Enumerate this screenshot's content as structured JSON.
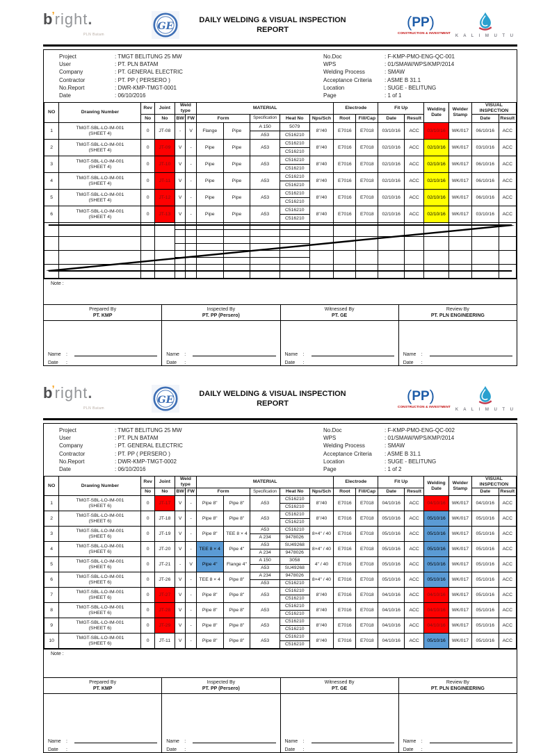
{
  "branding": {
    "title_line1": "DAILY WELDING & VISUAL INSPECTION",
    "title_line2": "REPORT",
    "bright_b": "b",
    "bright_apos": "’",
    "bright_rest": "right",
    "bright_dot": ".",
    "bright_sub": "PLN Batam",
    "ge_letters": "GE",
    "pp_letters": "PP",
    "pp_paren_open": "(",
    "pp_paren_close": ")",
    "pp_sub": "CONSTRUCTION & INVESTMENT",
    "kalimutu_text": "K A L I M U T U"
  },
  "labels": {
    "note": "Note :",
    "name": "Name",
    "date": "Date",
    "colon": ":"
  },
  "columns": {
    "no": "NO",
    "drawing": "Drawing Number",
    "rev": "Rev",
    "joint": "Joint",
    "no_sub": "No",
    "weld_type": "Weld type",
    "bw": "BW",
    "fw": "FW",
    "material": "MATERIAL",
    "form": "Form",
    "spec": "Specification",
    "heat": "Heat No",
    "nps": "Nps/Sch",
    "electrode": "Electrode",
    "root": "Root",
    "fillcap": "Fill/Cap",
    "fitup": "Fit Up",
    "date": "Date",
    "result": "Result",
    "welding_date": "Welding Date",
    "welder_stamp": "Welder Stamp",
    "visual": "VISUAL INSPECTION"
  },
  "signature": {
    "parties": [
      {
        "role": "Prepared By",
        "org": "PT. KMP"
      },
      {
        "role": "Inspected By",
        "org": "PT. PP (Persero)"
      },
      {
        "role": "Witnessed By",
        "org": "PT. GE"
      },
      {
        "role": "Review By",
        "org": "PT. PLN ENGINEERING"
      }
    ]
  },
  "pages": [
    {
      "info_left": [
        {
          "key": "project",
          "label": "Project",
          "value": "TMGT BELITUNG 25 MW"
        },
        {
          "key": "user",
          "label": "User",
          "value": "PT. PLN BATAM"
        },
        {
          "key": "company",
          "label": "Company",
          "value": "PT. GENERAL ELECTRIC"
        },
        {
          "key": "contractor",
          "label": "Contractor",
          "value": "PT. PP ( PERSERO )"
        },
        {
          "key": "no-report",
          "label": "No.Report",
          "value": "DWR-KMP-TMGT-0001"
        },
        {
          "key": "date",
          "label": "Date",
          "value": "06/10/2016"
        }
      ],
      "info_right": [
        {
          "key": "no-doc",
          "label": "No.Doc",
          "value": "F-KMP-PMO-ENG-QC-001"
        },
        {
          "key": "wps",
          "label": "WPS",
          "value": "01/SMAW/WPS/KMP/2014"
        },
        {
          "key": "welding-process",
          "label": "Welding Process",
          "value": "SMAW"
        },
        {
          "key": "acceptance-criteria",
          "label": "Acceptance Criteria",
          "value": "ASME B 31.1"
        },
        {
          "key": "location",
          "label": "Location",
          "value": "SUGE - BELITUNG"
        },
        {
          "key": "page",
          "label": "Page",
          "value": "1 of 1"
        }
      ],
      "rows": [
        {
          "no": "1",
          "drawing": "TMGT-SBL-LO-IM-001",
          "sheet": "(SHEET 4)",
          "rev": "0",
          "joint": "JT-08",
          "jbg": "",
          "bw": "-",
          "fw": "V",
          "f1": "Flange",
          "f1bg": "",
          "f2": "Pipe",
          "spec": [
            "A 150",
            "A53"
          ],
          "heat": [
            "5079",
            "C516210"
          ],
          "nps": "8\"/40",
          "root": "E7016",
          "fill": "E7018",
          "fit": "03/10/16",
          "fitr": "ACC",
          "wd": "03/10/16",
          "wbg": "red",
          "stamp": "WK/017",
          "vid": "06/10/16",
          "vir": "ACC"
        },
        {
          "no": "2",
          "drawing": "TMGT-SBL-LO-IM-001",
          "sheet": "(SHEET 4)",
          "rev": "0",
          "joint": "JT-09",
          "jbg": "red",
          "bw": "V",
          "fw": "-",
          "f1": "Pipe",
          "f1bg": "",
          "f2": "Pipe",
          "spec": [
            "A53"
          ],
          "heat": [
            "C516210",
            "C516210"
          ],
          "nps": "8\"/40",
          "root": "E7016",
          "fill": "E7018",
          "fit": "02/10/16",
          "fitr": "ACC",
          "wd": "02/10/16",
          "wbg": "yellow",
          "stamp": "WK/017",
          "vid": "03/10/16",
          "vir": "ACC"
        },
        {
          "no": "3",
          "drawing": "TMGT-SBL-LO-IM-001",
          "sheet": "(SHEET 4)",
          "rev": "0",
          "joint": "JT-10",
          "jbg": "red",
          "bw": "V",
          "fw": "-",
          "f1": "Pipe",
          "f1bg": "",
          "f2": "Pipe",
          "spec": [
            "A53"
          ],
          "heat": [
            "C516210",
            "C516210"
          ],
          "nps": "8\"/40",
          "root": "E7016",
          "fill": "E7018",
          "fit": "02/10/16",
          "fitr": "ACC",
          "wd": "02/10/16",
          "wbg": "yellow",
          "stamp": "WK/017",
          "vid": "06/10/16",
          "vir": "ACC"
        },
        {
          "no": "4",
          "drawing": "TMGT-SBL-LO-IM-001",
          "sheet": "(SHEET 4)",
          "rev": "0",
          "joint": "JT-11",
          "jbg": "red",
          "bw": "V",
          "fw": "-",
          "f1": "Pipe",
          "f1bg": "",
          "f2": "Pipe",
          "spec": [
            "A53"
          ],
          "heat": [
            "C516210",
            "C516210"
          ],
          "nps": "8\"/40",
          "root": "E7016",
          "fill": "E7018",
          "fit": "02/10/16",
          "fitr": "ACC",
          "wd": "02/10/16",
          "wbg": "yellow",
          "stamp": "WK/017",
          "vid": "06/10/16",
          "vir": "ACC"
        },
        {
          "no": "5",
          "drawing": "TMGT-SBL-LO-IM-001",
          "sheet": "(SHEET 4)",
          "rev": "0",
          "joint": "JT-12",
          "jbg": "red",
          "bw": "V",
          "fw": "-",
          "f1": "Pipe",
          "f1bg": "",
          "f2": "Pipe",
          "spec": [
            "A53"
          ],
          "heat": [
            "C516210",
            "C516210"
          ],
          "nps": "8\"/40",
          "root": "E7016",
          "fill": "E7018",
          "fit": "02/10/16",
          "fitr": "ACC",
          "wd": "02/10/16",
          "wbg": "yellow",
          "stamp": "WK/017",
          "vid": "06/10/16",
          "vir": "ACC"
        },
        {
          "no": "6",
          "drawing": "TMGT-SBL-LO-IM-001",
          "sheet": "(SHEET 4)",
          "rev": "0",
          "joint": "JT-13",
          "jbg": "red",
          "bw": "V",
          "fw": "-",
          "f1": "Pipe",
          "f1bg": "",
          "f2": "Pipe",
          "spec": [
            "A53"
          ],
          "heat": [
            "C516210",
            "C516210"
          ],
          "nps": "8\"/40",
          "root": "E7016",
          "fill": "E7018",
          "fit": "02/10/16",
          "fitr": "ACC",
          "wd": "02/10/16",
          "wbg": "yellow",
          "stamp": "WK/017",
          "vid": "03/10/16",
          "vir": "ACC"
        }
      ],
      "empty_rows": 4,
      "crossout": true
    },
    {
      "info_left": [
        {
          "key": "project",
          "label": "Project",
          "value": "TMGT BELITUNG 25 MW"
        },
        {
          "key": "user",
          "label": "User",
          "value": "PT. PLN BATAM"
        },
        {
          "key": "company",
          "label": "Company",
          "value": "PT. GENERAL ELECTRIC"
        },
        {
          "key": "contractor",
          "label": "Contractor",
          "value": "PT. PP ( PERSERO )"
        },
        {
          "key": "no-report",
          "label": "No.Report",
          "value": "DWR-KMP-TMGT-0002"
        },
        {
          "key": "date",
          "label": "Date",
          "value": "06/10/2016"
        }
      ],
      "info_right": [
        {
          "key": "no-doc",
          "label": "No.Doc",
          "value": "F-KMP-PMO-ENG-QC-002"
        },
        {
          "key": "wps",
          "label": "WPS",
          "value": "01/SMAW/WPS/KMP/2014"
        },
        {
          "key": "welding-process",
          "label": "Welding Process",
          "value": "SMAW"
        },
        {
          "key": "acceptance-criteria",
          "label": "Acceptance Criteria",
          "value": "ASME B 31.1"
        },
        {
          "key": "location",
          "label": "Location",
          "value": "SUGE - BELITUNG"
        },
        {
          "key": "page",
          "label": "Page",
          "value": "1 of 2"
        }
      ],
      "rows": [
        {
          "no": "1",
          "drawing": "TMGT-SBL-LO-IM-001",
          "sheet": "(SHEET 6)",
          "rev": "0",
          "joint": "JT-17",
          "jbg": "red",
          "bw": "V",
          "fw": "-",
          "f1": "Pipe 8\"",
          "f1bg": "",
          "f2": "Pipe 8\"",
          "spec": [
            "A53"
          ],
          "heat": [
            "C516210",
            "C516210"
          ],
          "nps": "8\"/40",
          "root": "E7016",
          "fill": "E7018",
          "fit": "04/10/16",
          "fitr": "ACC",
          "wd": "04/10/16",
          "wbg": "red",
          "stamp": "WK/017",
          "vid": "04/10/16",
          "vir": "ACC"
        },
        {
          "no": "2",
          "drawing": "TMGT-SBL-LO-IM-001",
          "sheet": "(SHEET 6)",
          "rev": "0",
          "joint": "JT-18",
          "jbg": "",
          "bw": "V",
          "fw": "-",
          "f1": "Pipe 8\"",
          "f1bg": "",
          "f2": "Pipe 8\"",
          "spec": [
            "A53"
          ],
          "heat": [
            "C516210",
            "C516210"
          ],
          "nps": "8\"/40",
          "root": "E7016",
          "fill": "E7018",
          "fit": "05/10/16",
          "fitr": "ACC",
          "wd": "05/10/16",
          "wbg": "blue",
          "stamp": "WK/017",
          "vid": "05/10/16",
          "vir": "ACC"
        },
        {
          "no": "3",
          "drawing": "TMGT-SBL-LO-IM-001",
          "sheet": "(SHEET 6)",
          "rev": "0",
          "joint": "JT-19",
          "jbg": "",
          "bw": "V",
          "fw": "-",
          "f1": "Pipe 8\"",
          "f1bg": "",
          "f2": "TEE 8 × 4",
          "spec": [
            "A53",
            "A 234"
          ],
          "heat": [
            "C516210",
            "9478026"
          ],
          "nps": "8×4\" / 40",
          "root": "E7016",
          "fill": "E7018",
          "fit": "05/10/16",
          "fitr": "ACC",
          "wd": "05/10/16",
          "wbg": "blue",
          "stamp": "WK/017",
          "vid": "05/10/16",
          "vir": "ACC"
        },
        {
          "no": "4",
          "drawing": "TMGT-SBL-LO-IM-001",
          "sheet": "(SHEET 6)",
          "rev": "0",
          "joint": "JT-20",
          "jbg": "",
          "bw": "V",
          "fw": "-",
          "f1": "TEE 8 × 4",
          "f1bg": "blue",
          "f2": "Pipe 4\"",
          "spec": [
            "A53",
            "A 234"
          ],
          "heat": [
            "SU49268",
            "9478026"
          ],
          "nps": "8×4\" / 40",
          "root": "E7016",
          "fill": "E7018",
          "fit": "05/10/16",
          "fitr": "ACC",
          "wd": "05/10/16",
          "wbg": "blue",
          "stamp": "WK/017",
          "vid": "05/10/16",
          "vir": "ACC"
        },
        {
          "no": "5",
          "drawing": "TMGT-SBL-LO-IM-001",
          "sheet": "(SHEET 6)",
          "rev": "0",
          "joint": "JT-21",
          "jbg": "",
          "bw": "-",
          "fw": "V",
          "f1": "Pipe 4\"",
          "f1bg": "blue",
          "f2": "Flange 4\"",
          "spec": [
            "A 150",
            "A53"
          ],
          "heat": [
            "3058",
            "SU49268"
          ],
          "nps": "4\" / 40",
          "root": "E7016",
          "fill": "E7018",
          "fit": "05/10/16",
          "fitr": "ACC",
          "wd": "05/10/16",
          "wbg": "blue",
          "stamp": "WK/017",
          "vid": "05/10/16",
          "vir": "ACC"
        },
        {
          "no": "6",
          "drawing": "TMGT-SBL-LO-IM-001",
          "sheet": "(SHEET 6)",
          "rev": "0",
          "joint": "JT-26",
          "jbg": "",
          "bw": "V",
          "fw": "-",
          "f1": "TEE 8 × 4",
          "f1bg": "",
          "f2": "Pipe 8\"",
          "spec": [
            "A 234",
            "A53"
          ],
          "heat": [
            "9478026",
            "C516210"
          ],
          "nps": "8×4\" / 40",
          "root": "E7016",
          "fill": "E7018",
          "fit": "05/10/16",
          "fitr": "ACC",
          "wd": "05/10/16",
          "wbg": "blue",
          "stamp": "WK/017",
          "vid": "05/10/16",
          "vir": "ACC"
        },
        {
          "no": "7",
          "drawing": "TMGT-SBL-LO-IM-001",
          "sheet": "(SHEET 6)",
          "rev": "0",
          "joint": "JT-27",
          "jbg": "red",
          "bw": "V",
          "fw": "-",
          "f1": "Pipe 8\"",
          "f1bg": "",
          "f2": "Pipe 8\"",
          "spec": [
            "A53"
          ],
          "heat": [
            "C516210",
            "C516210"
          ],
          "nps": "8\"/40",
          "root": "E7016",
          "fill": "E7018",
          "fit": "04/10/16",
          "fitr": "ACC",
          "wd": "04/10/16",
          "wbg": "red",
          "stamp": "WK/017",
          "vid": "05/10/16",
          "vir": "ACC"
        },
        {
          "no": "8",
          "drawing": "TMGT-SBL-LO-IM-001",
          "sheet": "(SHEET 6)",
          "rev": "0",
          "joint": "JT-28",
          "jbg": "red",
          "bw": "V",
          "fw": "-",
          "f1": "Pipe 8\"",
          "f1bg": "",
          "f2": "Pipe 8\"",
          "spec": [
            "A53"
          ],
          "heat": [
            "C516210",
            "C516210"
          ],
          "nps": "8\"/40",
          "root": "E7016",
          "fill": "E7018",
          "fit": "04/10/16",
          "fitr": "ACC",
          "wd": "04/10/16",
          "wbg": "red",
          "stamp": "WK/017",
          "vid": "05/10/16",
          "vir": "ACC"
        },
        {
          "no": "9",
          "drawing": "TMGT-SBL-LO-IM-001",
          "sheet": "(SHEET 6)",
          "rev": "0",
          "joint": "JT-29",
          "jbg": "red",
          "bw": "V",
          "fw": "-",
          "f1": "Pipe 8\"",
          "f1bg": "",
          "f2": "Pipe 8\"",
          "spec": [
            "A53"
          ],
          "heat": [
            "C516210",
            "C516210"
          ],
          "nps": "8\"/40",
          "root": "E7016",
          "fill": "E7018",
          "fit": "04/10/16",
          "fitr": "ACC",
          "wd": "04/10/16",
          "wbg": "red",
          "stamp": "WK/017",
          "vid": "05/10/16",
          "vir": "ACC"
        },
        {
          "no": "10",
          "drawing": "TMGT-SBL-LO-IM-001",
          "sheet": "(SHEET 6)",
          "rev": "0",
          "joint": "JT-11",
          "jbg": "",
          "bw": "V",
          "fw": "-",
          "f1": "Pipe 8\"",
          "f1bg": "",
          "f2": "Pipe 8\"",
          "spec": [
            "A53"
          ],
          "heat": [
            "C516210",
            "C516210"
          ],
          "nps": "8\"/40",
          "root": "E7016",
          "fill": "E7018",
          "fit": "04/10/16",
          "fitr": "ACC",
          "wd": "05/10/16",
          "wbg": "blue",
          "stamp": "WK/017",
          "vid": "05/10/16",
          "vir": "ACC"
        }
      ],
      "empty_rows": 0,
      "crossout": false
    }
  ]
}
